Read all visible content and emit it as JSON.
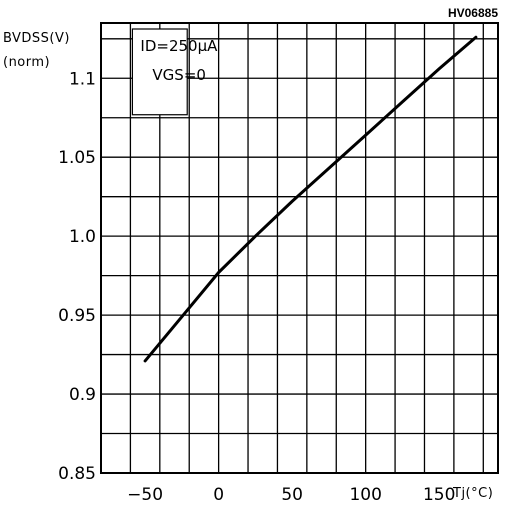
{
  "chart_data": {
    "type": "line",
    "code": "HV06885",
    "ylabel": "BVDSS(V)",
    "ylabel_unit": "(norm)",
    "xlabel": "Tj(°C)",
    "conditions": [
      "ID=250μA",
      "VGS=0"
    ],
    "xlim": [
      -80,
      190
    ],
    "ylim": [
      0.85,
      1.135
    ],
    "x_gridlines": [
      -80,
      -60,
      -40,
      -20,
      0,
      20,
      40,
      60,
      80,
      100,
      120,
      140,
      160,
      180
    ],
    "y_gridlines": [
      0.85,
      0.875,
      0.9,
      0.925,
      0.95,
      0.975,
      1.0,
      1.025,
      1.05,
      1.075,
      1.1,
      1.125
    ],
    "x_ticks": [
      {
        "value": -50,
        "label": "−50"
      },
      {
        "value": 0,
        "label": "0"
      },
      {
        "value": 50,
        "label": "50"
      },
      {
        "value": 100,
        "label": "100"
      },
      {
        "value": 150,
        "label": "150"
      }
    ],
    "y_ticks": [
      {
        "value": 0.85,
        "label": "0.85"
      },
      {
        "value": 0.9,
        "label": "0.9"
      },
      {
        "value": 0.95,
        "label": "0.95"
      },
      {
        "value": 1.0,
        "label": "1.0"
      },
      {
        "value": 1.05,
        "label": "1.05"
      },
      {
        "value": 1.1,
        "label": "1.1"
      }
    ],
    "series": [
      {
        "x": [
          -50,
          -25,
          0,
          25,
          50,
          75,
          100,
          125,
          150,
          175
        ],
        "y": [
          0.921,
          0.949,
          0.977,
          1.0,
          1.022,
          1.043,
          1.064,
          1.085,
          1.106,
          1.126
        ]
      }
    ]
  }
}
